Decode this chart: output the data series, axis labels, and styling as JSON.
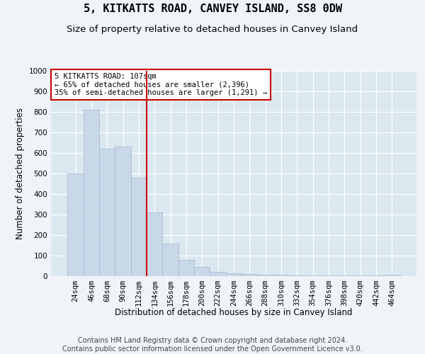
{
  "title": "5, KITKATTS ROAD, CANVEY ISLAND, SS8 0DW",
  "subtitle": "Size of property relative to detached houses in Canvey Island",
  "xlabel": "Distribution of detached houses by size in Canvey Island",
  "ylabel": "Number of detached properties",
  "footer_line1": "Contains HM Land Registry data © Crown copyright and database right 2024.",
  "footer_line2": "Contains public sector information licensed under the Open Government Licence v3.0.",
  "categories": [
    "24sqm",
    "46sqm",
    "68sqm",
    "90sqm",
    "112sqm",
    "134sqm",
    "156sqm",
    "178sqm",
    "200sqm",
    "222sqm",
    "244sqm",
    "266sqm",
    "288sqm",
    "310sqm",
    "332sqm",
    "354sqm",
    "376sqm",
    "398sqm",
    "420sqm",
    "442sqm",
    "464sqm"
  ],
  "values": [
    500,
    810,
    620,
    630,
    480,
    310,
    160,
    80,
    45,
    22,
    15,
    10,
    8,
    6,
    5,
    4,
    3,
    3,
    2,
    2,
    7
  ],
  "bar_color": "#c8d8e8",
  "bar_edge_color": "#a0b8cc",
  "vline_index": 4,
  "vline_color": "#cc0000",
  "annotation_text": "5 KITKATTS ROAD: 107sqm\n← 65% of detached houses are smaller (2,396)\n35% of semi-detached houses are larger (1,291) →",
  "annotation_box_color": "#cc0000",
  "annotation_bg": "#ffffff",
  "ylim": [
    0,
    1000
  ],
  "yticks": [
    0,
    100,
    200,
    300,
    400,
    500,
    600,
    700,
    800,
    900,
    1000
  ],
  "background_color": "#f0f4f8",
  "plot_bg_color": "#dce8f0",
  "grid_color": "#ffffff",
  "title_fontsize": 11,
  "subtitle_fontsize": 9.5,
  "axis_label_fontsize": 8.5,
  "tick_fontsize": 7.5,
  "footer_fontsize": 7
}
